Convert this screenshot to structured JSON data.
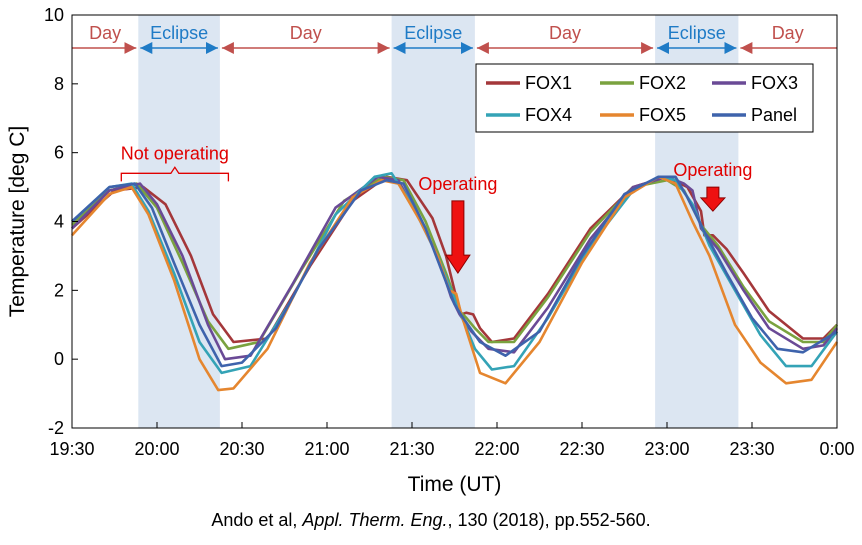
{
  "chart_data": {
    "type": "line",
    "xlabel": "Time (UT)",
    "ylabel": "Temperature [deg C]",
    "x_tick_labels": [
      "19:30",
      "20:00",
      "20:30",
      "21:00",
      "21:30",
      "22:00",
      "22:30",
      "23:00",
      "23:30",
      "0:00"
    ],
    "x_ticks_hours": [
      19.5,
      20.0,
      20.5,
      21.0,
      21.5,
      22.0,
      22.5,
      23.0,
      23.5,
      24.0
    ],
    "xlim": [
      19.5,
      24.0
    ],
    "ylim": [
      -2,
      10
    ],
    "y_ticks": [
      -2,
      0,
      2,
      4,
      6,
      8,
      10
    ],
    "grid": false,
    "legend_position": "top-right",
    "eclipse_intervals": [
      [
        19.89,
        20.37
      ],
      [
        21.38,
        21.87
      ],
      [
        22.93,
        23.42
      ]
    ],
    "phases": [
      {
        "label": "Day",
        "start": 19.5,
        "end": 19.89,
        "kind": "day"
      },
      {
        "label": "Eclipse",
        "start": 19.89,
        "end": 20.37,
        "kind": "eclipse"
      },
      {
        "label": "Day",
        "start": 20.37,
        "end": 21.38,
        "kind": "day"
      },
      {
        "label": "Eclipse",
        "start": 21.38,
        "end": 21.87,
        "kind": "eclipse"
      },
      {
        "label": "Day",
        "start": 21.87,
        "end": 22.93,
        "kind": "day"
      },
      {
        "label": "Eclipse",
        "start": 22.93,
        "end": 23.42,
        "kind": "eclipse"
      },
      {
        "label": "Day",
        "start": 23.42,
        "end": 24.0,
        "kind": "day"
      }
    ],
    "annotations": [
      {
        "text": "Not operating",
        "type": "brace",
        "x_start": 19.79,
        "x_end": 20.42,
        "y": 5.4
      },
      {
        "text": "Operating",
        "type": "arrow",
        "x": 21.77,
        "y_top": 4.6,
        "y_bottom": 2.5
      },
      {
        "text": "Operating",
        "type": "arrow",
        "x": 23.27,
        "y_top": 5.0,
        "y_bottom": 4.3
      }
    ],
    "series": [
      {
        "name": "FOX1",
        "color": "#a4373a",
        "x": [
          19.5,
          19.75,
          19.92,
          20.05,
          20.2,
          20.33,
          20.45,
          20.65,
          20.9,
          21.15,
          21.35,
          21.47,
          21.62,
          21.7,
          21.75,
          21.79,
          21.82,
          21.86,
          21.9,
          21.97,
          22.1,
          22.3,
          22.55,
          22.8,
          23.0,
          23.12,
          23.2,
          23.22,
          23.27,
          23.35,
          23.45,
          23.6,
          23.8,
          23.92,
          24.0
        ],
        "y": [
          3.8,
          4.9,
          5.0,
          4.5,
          3.0,
          1.3,
          0.5,
          0.6,
          2.7,
          4.6,
          5.3,
          5.2,
          4.1,
          3.0,
          2.0,
          1.3,
          1.35,
          1.3,
          0.9,
          0.5,
          0.6,
          1.9,
          3.8,
          5.0,
          5.3,
          5.0,
          4.3,
          3.6,
          3.6,
          3.2,
          2.5,
          1.4,
          0.6,
          0.6,
          1.0
        ]
      },
      {
        "name": "FOX2",
        "color": "#7aa23f",
        "x": [
          19.5,
          19.72,
          19.88,
          20.0,
          20.15,
          20.3,
          20.42,
          20.6,
          20.85,
          21.1,
          21.33,
          21.45,
          21.58,
          21.7,
          21.78,
          21.82,
          21.87,
          21.95,
          22.1,
          22.3,
          22.55,
          22.8,
          23.0,
          23.1,
          23.2,
          23.3,
          23.45,
          23.6,
          23.8,
          23.92,
          24.0
        ],
        "y": [
          3.9,
          4.9,
          5.1,
          4.4,
          2.8,
          1.1,
          0.3,
          0.5,
          2.6,
          4.6,
          5.3,
          5.2,
          4.0,
          2.5,
          1.4,
          1.2,
          0.9,
          0.5,
          0.5,
          1.8,
          3.7,
          5.0,
          5.2,
          4.9,
          3.9,
          3.3,
          2.1,
          1.1,
          0.5,
          0.5,
          1.0
        ]
      },
      {
        "name": "FOX3",
        "color": "#6a4a96",
        "x": [
          19.5,
          19.72,
          19.9,
          20.0,
          20.15,
          20.3,
          20.4,
          20.55,
          20.8,
          21.05,
          21.3,
          21.42,
          21.55,
          21.65,
          21.73,
          21.78,
          21.85,
          21.95,
          22.1,
          22.3,
          22.55,
          22.8,
          23.0,
          23.1,
          23.15,
          23.2,
          23.3,
          23.45,
          23.6,
          23.8,
          23.92,
          24.0
        ],
        "y": [
          3.8,
          4.9,
          5.1,
          4.5,
          3.0,
          1.0,
          0.0,
          0.1,
          2.2,
          4.4,
          5.3,
          5.2,
          4.0,
          3.0,
          1.8,
          1.3,
          0.8,
          0.3,
          0.2,
          1.5,
          3.5,
          5.0,
          5.3,
          5.1,
          4.9,
          3.8,
          3.2,
          2.0,
          0.9,
          0.3,
          0.4,
          0.9
        ]
      },
      {
        "name": "FOX4",
        "color": "#34a3b6",
        "x": [
          19.5,
          19.72,
          19.85,
          19.95,
          20.1,
          20.25,
          20.38,
          20.55,
          20.8,
          21.05,
          21.28,
          21.38,
          21.5,
          21.65,
          21.77,
          21.87,
          21.97,
          22.1,
          22.3,
          22.55,
          22.8,
          22.95,
          23.05,
          23.15,
          23.25,
          23.4,
          23.55,
          23.7,
          23.85,
          24.0
        ],
        "y": [
          4.0,
          5.0,
          5.1,
          4.3,
          2.5,
          0.5,
          -0.4,
          -0.2,
          1.8,
          4.2,
          5.3,
          5.4,
          4.5,
          3.0,
          1.5,
          0.3,
          -0.3,
          -0.2,
          1.2,
          3.3,
          4.9,
          5.3,
          5.2,
          4.5,
          3.3,
          2.0,
          0.7,
          -0.2,
          -0.2,
          0.8
        ]
      },
      {
        "name": "FOX5",
        "color": "#e5862f",
        "x": [
          19.5,
          19.72,
          19.85,
          19.95,
          20.1,
          20.25,
          20.36,
          20.45,
          20.65,
          20.9,
          21.15,
          21.32,
          21.42,
          21.55,
          21.65,
          21.72,
          21.76,
          21.79,
          21.9,
          22.05,
          22.25,
          22.5,
          22.75,
          22.95,
          23.05,
          23.15,
          23.25,
          23.4,
          23.55,
          23.7,
          23.85,
          24.0
        ],
        "y": [
          3.6,
          4.8,
          5.0,
          4.2,
          2.3,
          0.0,
          -0.9,
          -0.85,
          0.3,
          2.8,
          4.7,
          5.2,
          5.1,
          4.0,
          3.0,
          2.0,
          1.9,
          1.3,
          -0.4,
          -0.7,
          0.5,
          2.8,
          4.7,
          5.3,
          5.1,
          4.0,
          3.0,
          1.0,
          -0.1,
          -0.7,
          -0.6,
          0.5
        ]
      },
      {
        "name": "Panel",
        "color": "#3e63ac",
        "x": [
          19.5,
          19.72,
          19.87,
          19.97,
          20.1,
          20.25,
          20.38,
          20.5,
          20.7,
          20.95,
          21.2,
          21.35,
          21.45,
          21.58,
          21.68,
          21.75,
          21.8,
          21.9,
          22.05,
          22.25,
          22.5,
          22.75,
          22.95,
          23.05,
          23.12,
          23.22,
          23.35,
          23.5,
          23.65,
          23.8,
          24.0
        ],
        "y": [
          4.0,
          5.0,
          5.1,
          4.4,
          2.8,
          1.0,
          -0.2,
          -0.1,
          0.9,
          3.2,
          4.9,
          5.2,
          5.1,
          3.8,
          2.5,
          1.6,
          1.2,
          0.5,
          0.1,
          0.8,
          3.0,
          4.8,
          5.3,
          5.3,
          4.7,
          3.7,
          2.5,
          1.2,
          0.3,
          0.2,
          0.8
        ]
      }
    ]
  },
  "citation": {
    "authors": "Ando  et al, ",
    "journal": "Appl. Therm. Eng.",
    "details": ", 130 (2018), pp.552-560."
  }
}
